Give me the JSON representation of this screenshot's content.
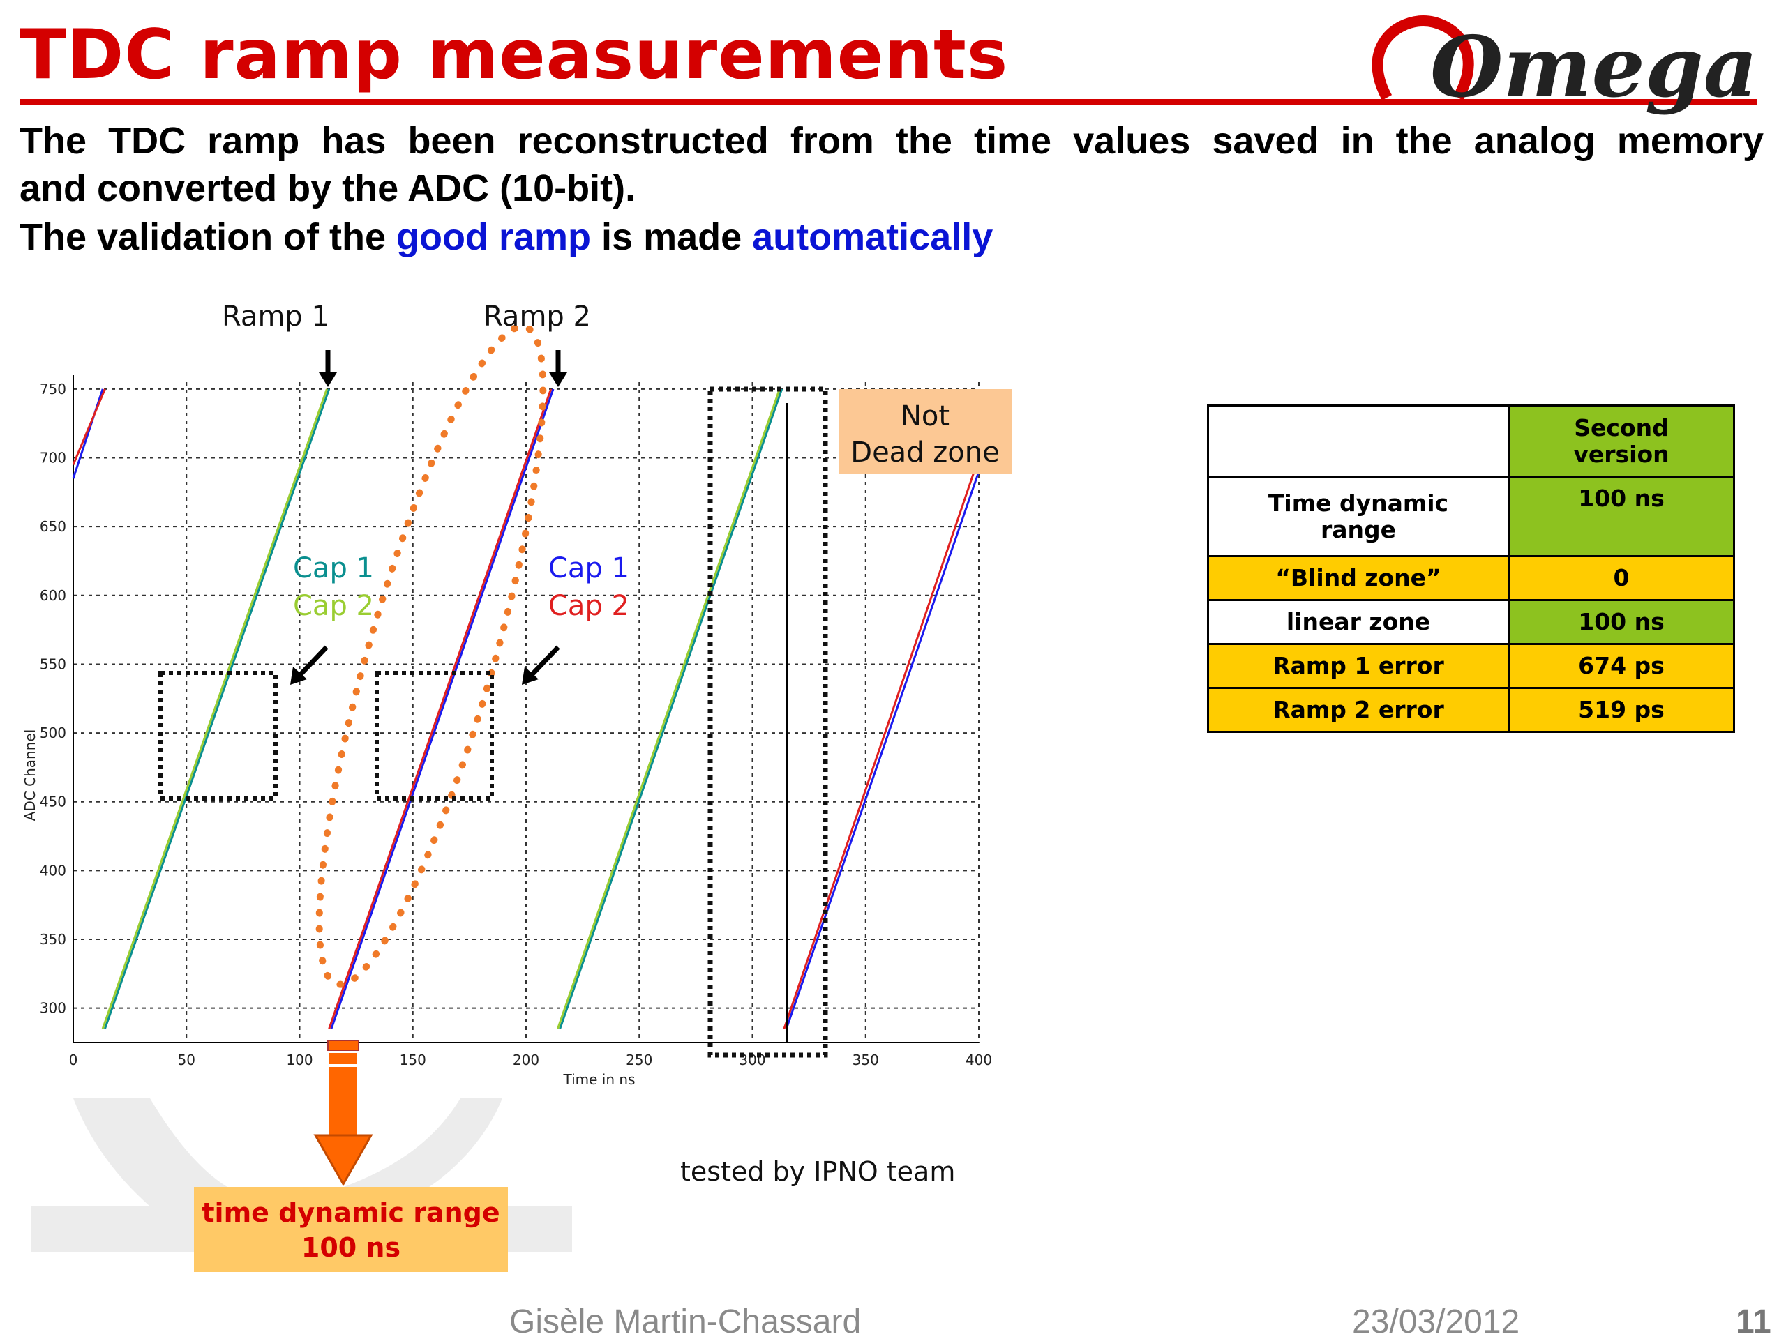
{
  "slide": {
    "title": "TDC ramp measurements",
    "logo_text": "Omega",
    "intro_line1": "The TDC ramp has been reconstructed from the time values saved in the analog memory",
    "intro_line2": "and converted by the ADC (10-bit).",
    "intro_line3_part1": "The validation of the ",
    "intro_line3_highlight1": "good ramp",
    "intro_line3_part2": " is made ",
    "intro_line3_highlight2": "automatically",
    "tested_by": "tested by IPNO team",
    "footer_author": "Gisèle Martin-Chassard",
    "footer_date": "23/03/2012",
    "footer_page": "11"
  },
  "colors": {
    "title_red": "#d40000",
    "highlight_blue": "#0a14d4",
    "table_green": "#8dc21f",
    "table_yellow": "#ffcc00",
    "callout_orange": "#ff6600",
    "callout_bg": "#ffc966",
    "dead_zone_bg": "#fcc894"
  },
  "chart_data": {
    "type": "line",
    "title": "",
    "xlabel": "Time in ns",
    "ylabel": "ADC Channel",
    "xlim": [
      0,
      400
    ],
    "ylim": [
      275,
      755
    ],
    "xticks": [
      0,
      50,
      100,
      150,
      200,
      250,
      300,
      350,
      400
    ],
    "yticks": [
      300,
      350,
      400,
      450,
      500,
      550,
      600,
      650,
      700,
      750
    ],
    "grid": true,
    "series": [
      {
        "name": "Cap 1",
        "color": "#0a8f8f",
        "segments": [
          [
            [
              14,
              285
            ],
            [
              113,
              750
            ]
          ],
          [
            [
              215,
              285
            ],
            [
              313,
              750
            ]
          ]
        ]
      },
      {
        "name": "Cap 2",
        "color": "#9acd32",
        "segments": [
          [
            [
              13,
              285
            ],
            [
              112,
              750
            ]
          ],
          [
            [
              214,
              285
            ],
            [
              312,
              750
            ]
          ]
        ]
      },
      {
        "name": "Cap 1",
        "color": "#1a1aee",
        "segments": [
          [
            [
              0,
              685
            ],
            [
              13,
              750
            ]
          ],
          [
            [
              114,
              285
            ],
            [
              212,
              750
            ]
          ],
          [
            [
              315,
              285
            ],
            [
              400,
              690
            ]
          ]
        ]
      },
      {
        "name": "Cap 2",
        "color": "#e02020",
        "segments": [
          [
            [
              0,
              695
            ],
            [
              14,
              750
            ]
          ],
          [
            [
              113,
              285
            ],
            [
              211,
              750
            ]
          ],
          [
            [
              314,
              285
            ],
            [
              400,
              700
            ]
          ]
        ]
      }
    ],
    "annotations": {
      "ramp1": "Ramp 1",
      "ramp2": "Ramp 2",
      "cap1_left": "Cap 1",
      "cap2_left": "Cap 2",
      "cap1_right": "Cap 1",
      "cap2_right": "Cap 2",
      "not_dead_zone_line1": "Not",
      "not_dead_zone_line2": "Dead zone",
      "range_label_line1": "time dynamic range",
      "range_label_line2": "100 ns"
    }
  },
  "table": {
    "header": [
      "",
      "Second version"
    ],
    "rows": [
      {
        "label": "Time dynamic range",
        "value": "100 ns",
        "label_bg": "white",
        "value_bg": "green"
      },
      {
        "label": "“Blind zone”",
        "value": "0",
        "label_bg": "yellow",
        "value_bg": "yellow"
      },
      {
        "label": "linear zone",
        "value": "100 ns",
        "label_bg": "white",
        "value_bg": "green"
      },
      {
        "label": "Ramp 1 error",
        "value": "674 ps",
        "label_bg": "yellow",
        "value_bg": "yellow"
      },
      {
        "label": "Ramp 2 error",
        "value": "519 ps",
        "label_bg": "yellow",
        "value_bg": "yellow"
      }
    ]
  }
}
